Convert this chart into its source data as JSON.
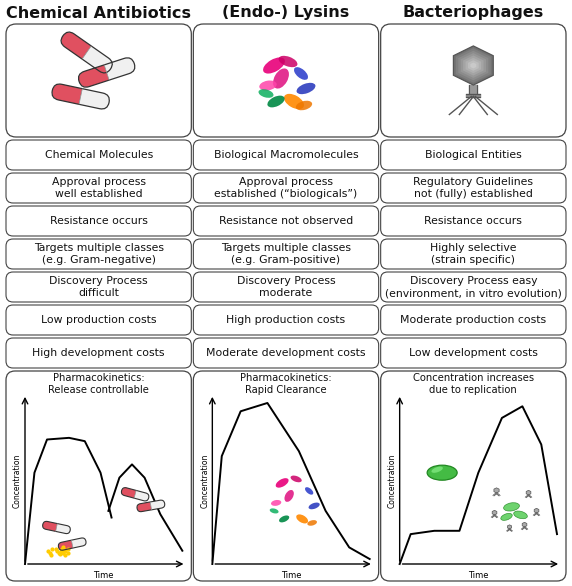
{
  "title_row": [
    "Chemical Antibiotics",
    "(Endo-) Lysins",
    "Bacteriophages"
  ],
  "rows": [
    [
      "Chemical Molecules",
      "Biological Macromolecules",
      "Biological Entities"
    ],
    [
      "Approval process\nwell established",
      "Approval process\nestablished (“biologicals”)",
      "Regulatory Guidelines\nnot (fully) established"
    ],
    [
      "Resistance occurs",
      "Resistance not observed",
      "Resistance occurs"
    ],
    [
      "Targets multiple classes\n(e.g. Gram-negative)",
      "Targets multiple classes\n(e.g. Gram-positive)",
      "Highly selective\n(strain specific)"
    ],
    [
      "Discovery Process\ndifficult",
      "Discovery Process\nmoderate",
      "Discovery Process easy\n(environment, in vitro evolution)"
    ],
    [
      "Low production costs",
      "High production costs",
      "Moderate production costs"
    ],
    [
      "High development costs",
      "Moderate development costs",
      "Low development costs"
    ],
    [
      "Pharmacokinetics:\nRelease controllable",
      "Pharmacokinetics:\nRapid Clearance",
      "Concentration increases\ndue to replication"
    ]
  ],
  "bg_color": "#ffffff",
  "text_color": "#111111",
  "title_fontsize": 11.5,
  "row_fontsize": 7.8,
  "graph_label_fontsize": 6.5,
  "pill_color": "#e05060",
  "pill_color2": "#f5f5f5",
  "phage_color": "#999999",
  "phage_dark": "#555555",
  "bact_color": "#44bb44",
  "bact_dark": "#228822",
  "yellow_dot": "#ffcc00"
}
